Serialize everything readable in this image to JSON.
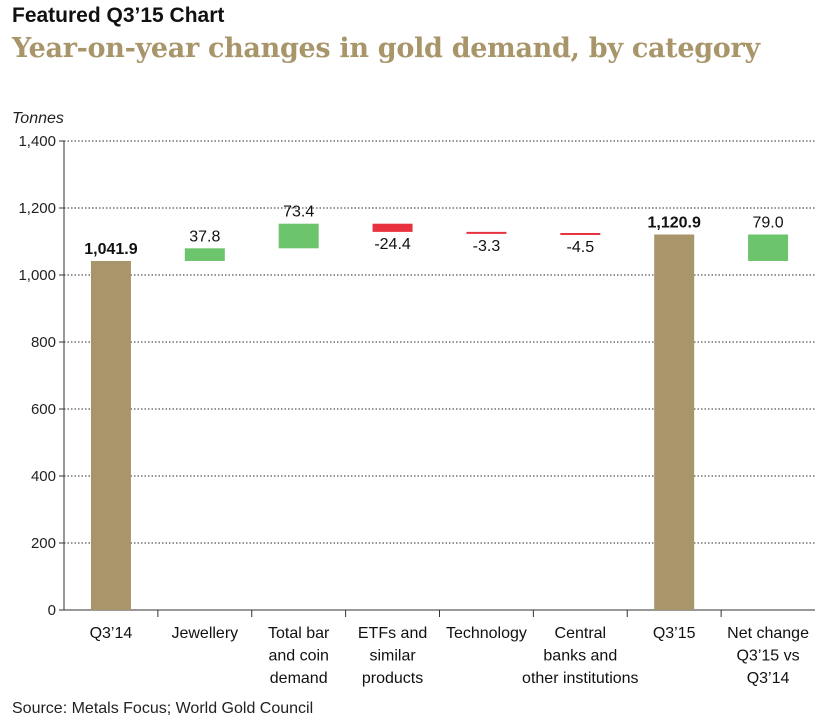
{
  "header": {
    "kicker": "Featured Q3’15 Chart",
    "title": "Year-on-year changes in gold demand, by category"
  },
  "source": "Source: Metals Focus; World Gold Council",
  "colors": {
    "total": "#a8956a",
    "increase": "#6cc46c",
    "decrease": "#e8323f",
    "headline": "#a8956a"
  },
  "chart_data": {
    "type": "bar",
    "subtype": "waterfall",
    "ylabel": "Tonnes",
    "ylim": [
      0,
      1400
    ],
    "yticks": [
      "0",
      "200",
      "400",
      "600",
      "800",
      "1,000",
      "1,200",
      "1,400"
    ],
    "grid": true,
    "categories": [
      [
        "Q3’14"
      ],
      [
        "Jewellery"
      ],
      [
        "Total bar",
        "and coin",
        "demand"
      ],
      [
        "ETFs and",
        "similar",
        "products"
      ],
      [
        "Technology"
      ],
      [
        "Central",
        "banks and",
        "other institutions"
      ],
      [
        "Q3’15"
      ],
      [
        "Net change",
        "Q3’15 vs",
        "Q3’14"
      ]
    ],
    "bars": [
      {
        "kind": "total",
        "start": 0,
        "end": 1041.9,
        "label": "1,041.9"
      },
      {
        "kind": "change",
        "start": 1041.9,
        "end": 1079.7,
        "label": "37.8"
      },
      {
        "kind": "change",
        "start": 1079.7,
        "end": 1153.1,
        "label": "73.4"
      },
      {
        "kind": "change",
        "start": 1153.1,
        "end": 1128.7,
        "label": "-24.4"
      },
      {
        "kind": "change",
        "start": 1128.7,
        "end": 1125.4,
        "label": "-3.3"
      },
      {
        "kind": "change",
        "start": 1125.4,
        "end": 1120.9,
        "label": "-4.5"
      },
      {
        "kind": "total",
        "start": 0,
        "end": 1120.9,
        "label": "1,120.9"
      },
      {
        "kind": "change",
        "start": 1041.9,
        "end": 1120.9,
        "label": "79.0"
      }
    ]
  }
}
